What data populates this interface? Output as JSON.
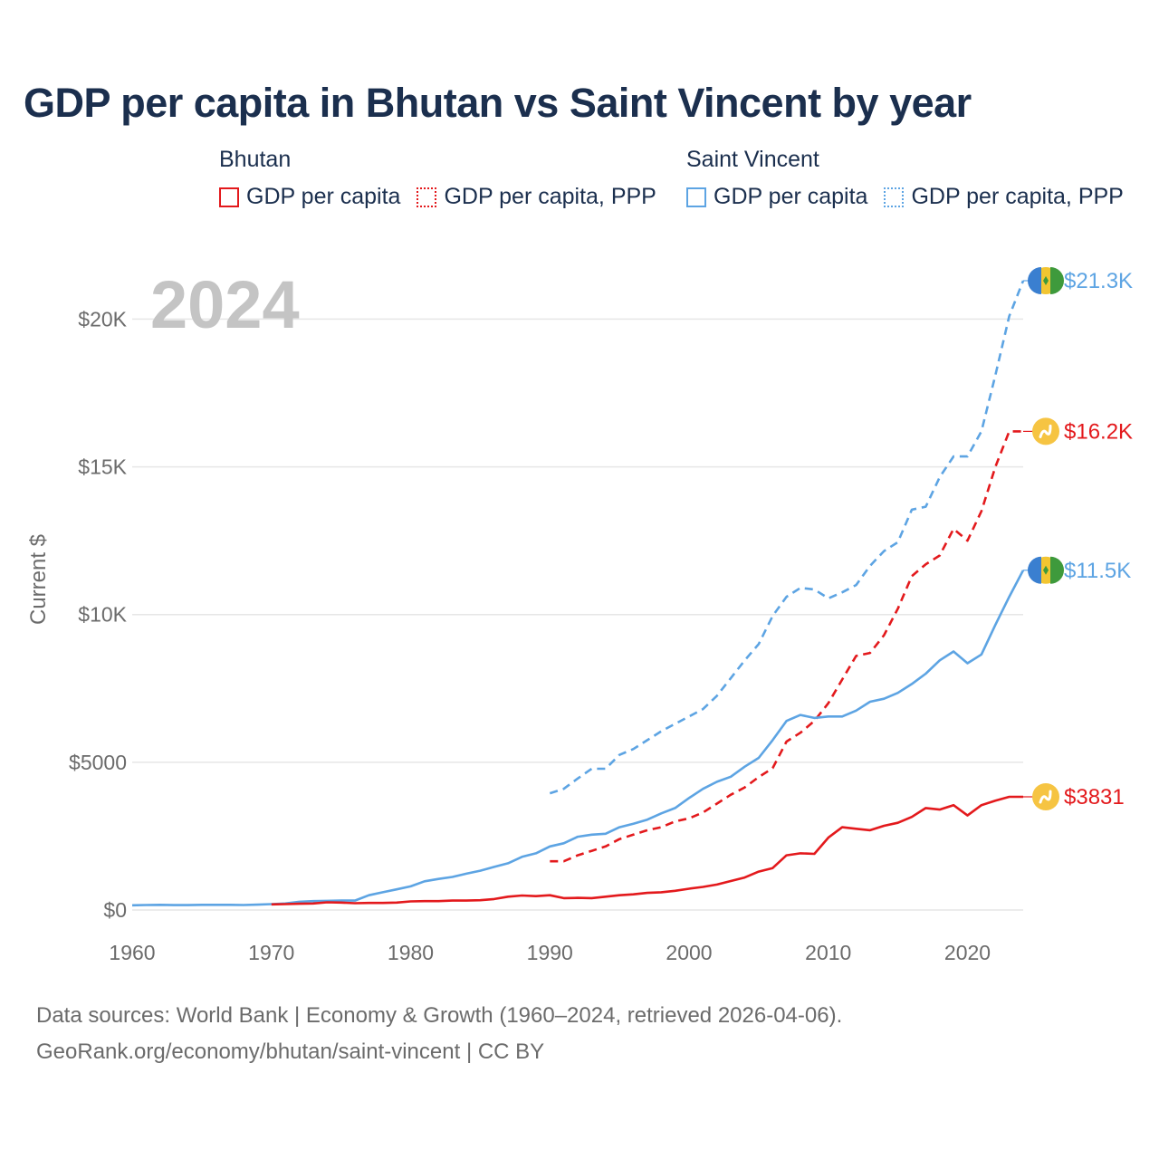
{
  "title": "GDP per capita in Bhutan vs Saint Vincent by year",
  "legend": {
    "groups": [
      {
        "name": "Bhutan",
        "color": "#e3191c",
        "items": [
          {
            "label": "GDP per capita",
            "style": "solid"
          },
          {
            "label": "GDP per capita, PPP",
            "style": "dotted"
          }
        ]
      },
      {
        "name": "Saint Vincent",
        "color": "#5da4e3",
        "items": [
          {
            "label": "GDP per capita",
            "style": "solid"
          },
          {
            "label": "GDP per capita, PPP",
            "style": "dotted"
          }
        ]
      }
    ]
  },
  "year_watermark": "2024",
  "footer": {
    "line1": "Data sources: World Bank | Economy & Growth (1960–2024, retrieved 2026-04-06).",
    "line2": "GeoRank.org/economy/bhutan/saint-vincent | CC BY"
  },
  "colors": {
    "bhutan": "#e3191c",
    "saint_vincent": "#5da4e3",
    "title": "#1b2f4e",
    "axis_text": "#6b6b6b",
    "grid": "#e6e6e6",
    "watermark": "#c4c4c4"
  },
  "chart_data": {
    "type": "line",
    "title": "GDP per capita in Bhutan vs Saint Vincent by year",
    "xlabel": "",
    "ylabel": "Current $",
    "xlim": [
      1960,
      2024
    ],
    "ylim": [
      0,
      21300
    ],
    "x_ticks": [
      1960,
      1970,
      1980,
      1990,
      2000,
      2010,
      2020
    ],
    "x_tick_labels": [
      "1960",
      "1970",
      "1980",
      "1990",
      "2000",
      "2010",
      "2020"
    ],
    "y_ticks": [
      0,
      5000,
      10000,
      15000,
      20000
    ],
    "y_tick_labels": [
      "$0",
      "$5000",
      "$10K",
      "$15K",
      "$20K"
    ],
    "grid": true,
    "series": [
      {
        "name": "Saint Vincent GDP per capita, PPP",
        "country": "Saint Vincent",
        "style": "dashed",
        "color": "#5da4e3",
        "end_label": "$21.3K",
        "flag": "saint-vincent-flag-icon",
        "x": [
          1990,
          1991,
          1992,
          1993,
          1994,
          1995,
          1996,
          1997,
          1998,
          1999,
          2000,
          2001,
          2002,
          2003,
          2004,
          2005,
          2006,
          2007,
          2008,
          2009,
          2010,
          2011,
          2012,
          2013,
          2014,
          2015,
          2016,
          2017,
          2018,
          2019,
          2020,
          2021,
          2022,
          2023,
          2024
        ],
        "values": [
          3950,
          4100,
          4450,
          4780,
          4780,
          5250,
          5450,
          5750,
          6050,
          6300,
          6550,
          6800,
          7250,
          7850,
          8450,
          9000,
          9950,
          10600,
          10900,
          10850,
          10550,
          10750,
          11000,
          11650,
          12150,
          12450,
          13550,
          13650,
          14650,
          15350,
          15350,
          16200,
          18100,
          20100,
          21300
        ]
      },
      {
        "name": "Bhutan GDP per capita, PPP",
        "country": "Bhutan",
        "style": "dashed",
        "color": "#e3191c",
        "end_label": "$16.2K",
        "flag": "bhutan-flag-icon",
        "x": [
          1990,
          1991,
          1992,
          1993,
          1994,
          1995,
          1996,
          1997,
          1998,
          1999,
          2000,
          2001,
          2002,
          2003,
          2004,
          2005,
          2006,
          2007,
          2008,
          2009,
          2010,
          2011,
          2012,
          2013,
          2014,
          2015,
          2016,
          2017,
          2018,
          2019,
          2020,
          2021,
          2022,
          2023,
          2024
        ],
        "values": [
          1650,
          1650,
          1850,
          2000,
          2150,
          2400,
          2550,
          2700,
          2800,
          3000,
          3100,
          3300,
          3600,
          3900,
          4150,
          4500,
          4800,
          5700,
          6000,
          6400,
          7000,
          7800,
          8600,
          8700,
          9300,
          10200,
          11300,
          11700,
          12000,
          12900,
          12500,
          13500,
          15000,
          16200,
          16200
        ]
      },
      {
        "name": "Saint Vincent GDP per capita",
        "country": "Saint Vincent",
        "style": "solid",
        "color": "#5da4e3",
        "end_label": "$11.5K",
        "flag": "saint-vincent-flag-icon",
        "x": [
          1960,
          1961,
          1962,
          1963,
          1964,
          1965,
          1966,
          1967,
          1968,
          1969,
          1970,
          1971,
          1972,
          1973,
          1974,
          1975,
          1976,
          1977,
          1978,
          1979,
          1980,
          1981,
          1982,
          1983,
          1984,
          1985,
          1986,
          1987,
          1988,
          1989,
          1990,
          1991,
          1992,
          1993,
          1994,
          1995,
          1996,
          1997,
          1998,
          1999,
          2000,
          2001,
          2002,
          2003,
          2004,
          2005,
          2006,
          2007,
          2008,
          2009,
          2010,
          2011,
          2012,
          2013,
          2014,
          2015,
          2016,
          2017,
          2018,
          2019,
          2020,
          2021,
          2022,
          2023,
          2024
        ],
        "values": [
          160,
          170,
          175,
          165,
          165,
          175,
          175,
          175,
          170,
          180,
          200,
          220,
          280,
          300,
          310,
          320,
          320,
          500,
          600,
          700,
          800,
          970,
          1050,
          1120,
          1230,
          1330,
          1460,
          1580,
          1800,
          1920,
          2150,
          2260,
          2480,
          2550,
          2580,
          2800,
          2920,
          3060,
          3270,
          3450,
          3790,
          4100,
          4340,
          4510,
          4850,
          5150,
          5750,
          6400,
          6600,
          6500,
          6550,
          6550,
          6750,
          7050,
          7150,
          7350,
          7650,
          8000,
          8450,
          8750,
          8350,
          8650,
          9650,
          10600,
          11500
        ]
      },
      {
        "name": "Bhutan GDP per capita",
        "country": "Bhutan",
        "style": "solid",
        "color": "#e3191c",
        "end_label": "$3831",
        "flag": "bhutan-flag-icon",
        "x": [
          1970,
          1971,
          1972,
          1973,
          1974,
          1975,
          1976,
          1977,
          1978,
          1979,
          1980,
          1981,
          1982,
          1983,
          1984,
          1985,
          1986,
          1987,
          1988,
          1989,
          1990,
          1991,
          1992,
          1993,
          1994,
          1995,
          1996,
          1997,
          1998,
          1999,
          2000,
          2001,
          2002,
          2003,
          2004,
          2005,
          2006,
          2007,
          2008,
          2009,
          2010,
          2011,
          2012,
          2013,
          2014,
          2015,
          2016,
          2017,
          2018,
          2019,
          2020,
          2021,
          2022,
          2023,
          2024
        ],
        "values": [
          190,
          200,
          210,
          220,
          260,
          250,
          230,
          240,
          240,
          250,
          290,
          300,
          300,
          320,
          320,
          330,
          370,
          450,
          490,
          470,
          500,
          400,
          410,
          400,
          450,
          500,
          530,
          580,
          600,
          650,
          720,
          780,
          860,
          980,
          1100,
          1300,
          1420,
          1850,
          1920,
          1900,
          2450,
          2800,
          2750,
          2700,
          2850,
          2950,
          3150,
          3450,
          3400,
          3550,
          3200,
          3550,
          3700,
          3831,
          3831
        ]
      }
    ]
  }
}
